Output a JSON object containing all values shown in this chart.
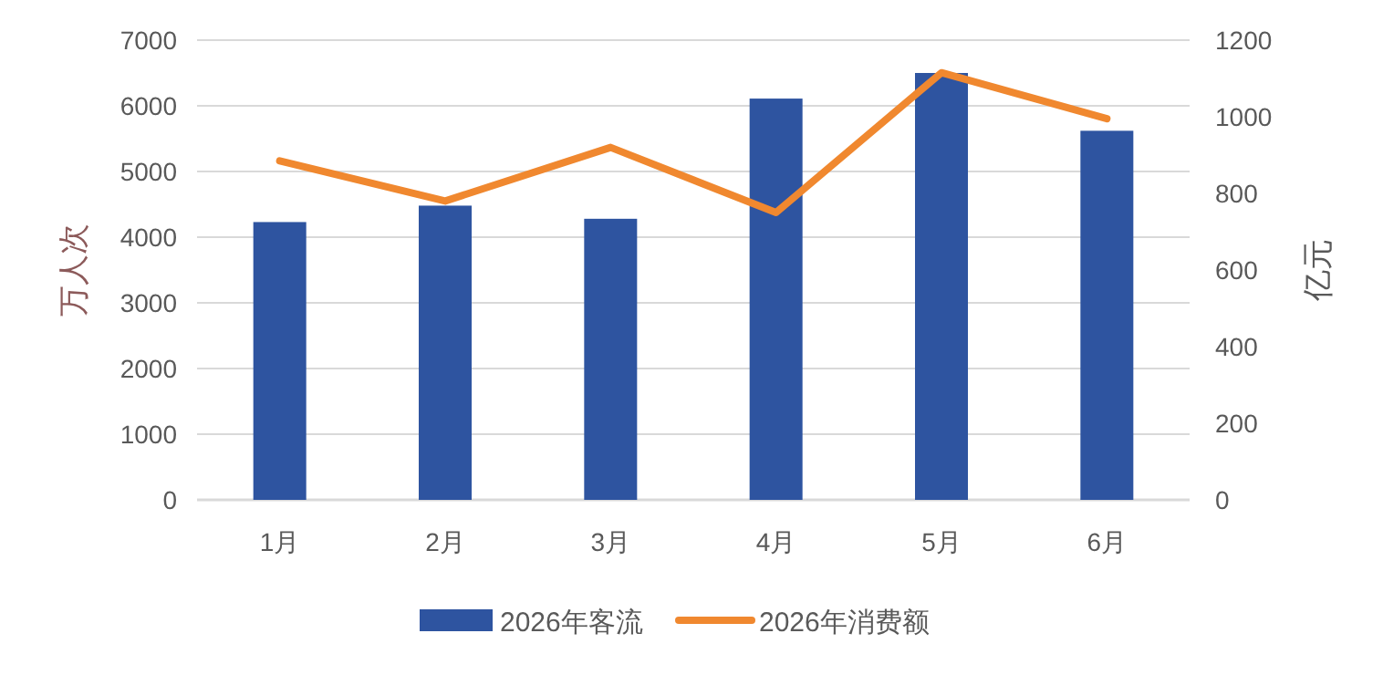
{
  "chart_data": {
    "type": "bar",
    "categories": [
      "1月",
      "2月",
      "3月",
      "4月",
      "5月",
      "6月"
    ],
    "series": [
      {
        "name": "2026年客流",
        "color": "#2e54a0",
        "values": [
          4230,
          4480,
          4280,
          6110,
          6500,
          5620
        ]
      },
      {
        "name": "2026年消费额",
        "type": "line",
        "axis": "y2",
        "color": "#f0882f",
        "values": [
          885,
          780,
          920,
          750,
          1115,
          995
        ]
      }
    ],
    "ylabel": "万人次",
    "y2label": "亿元",
    "ylim": [
      0,
      7000
    ],
    "yticks": [
      0,
      1000,
      2000,
      3000,
      4000,
      5000,
      6000,
      7000
    ],
    "y2lim": [
      0,
      1200
    ],
    "y2ticks": [
      0,
      200,
      400,
      600,
      800,
      1000,
      1200
    ],
    "grid": "y",
    "legend": "bottom"
  }
}
